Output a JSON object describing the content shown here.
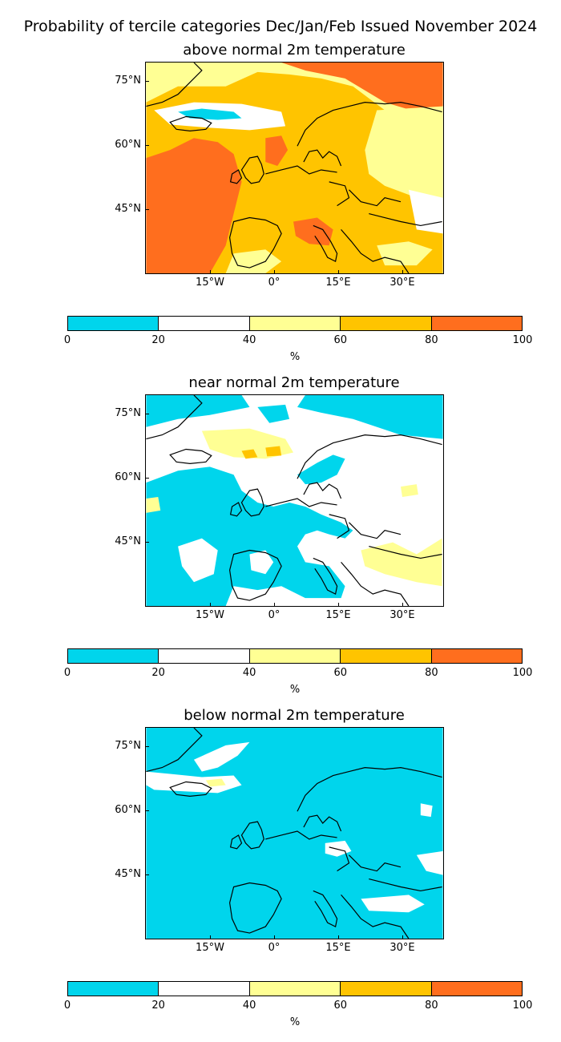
{
  "title": "Probability of tercile categories Dec/Jan/Feb Issued November 2024",
  "colors": {
    "below_20": "#00d5ec",
    "p20_40": "#ffffff",
    "p40_60": "#ffff94",
    "p60_80": "#ffc400",
    "p80_100": "#ff6e1e",
    "coast": "#000000"
  },
  "lat_labels": [
    "75°N",
    "60°N",
    "45°N"
  ],
  "lon_labels": [
    "15°W",
    "0°",
    "15°E",
    "30°E"
  ],
  "colorbar": {
    "ticks": [
      "0",
      "20",
      "40",
      "60",
      "80",
      "100"
    ],
    "unit": "%"
  },
  "panels": [
    {
      "title": "above normal 2m temperature",
      "category": "above",
      "dominant_range": "60-80"
    },
    {
      "title": "near normal 2m temperature",
      "category": "near",
      "dominant_range": "20-40"
    },
    {
      "title": "below normal 2m temperature",
      "category": "below",
      "dominant_range": "0-20"
    }
  ]
}
